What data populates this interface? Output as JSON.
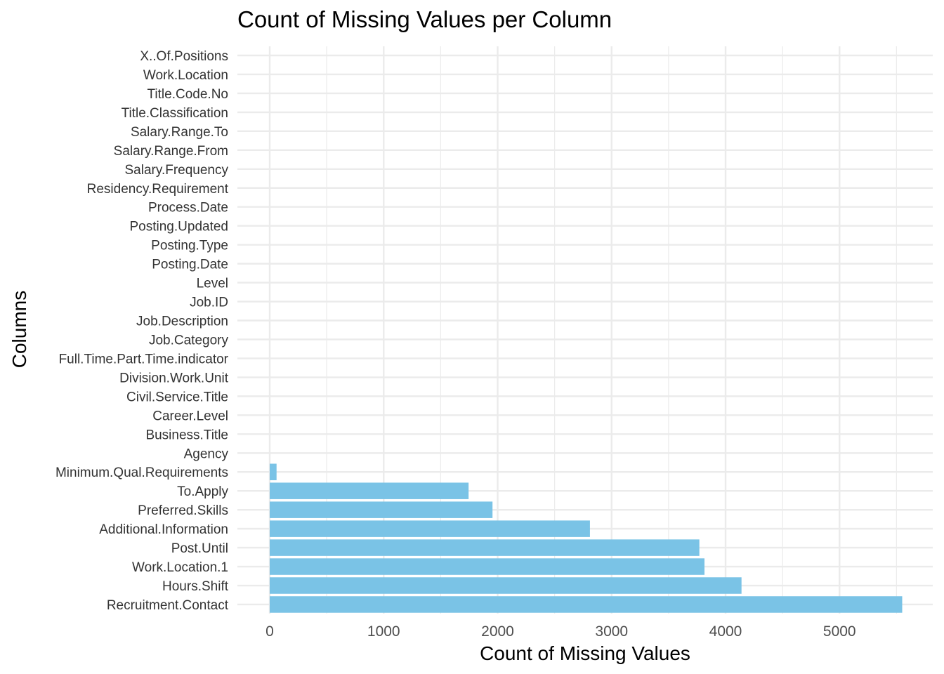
{
  "chart_data": {
    "type": "bar",
    "orientation": "horizontal",
    "title": "Count of Missing Values per Column",
    "xlabel": "Count of Missing Values",
    "ylabel": "Columns",
    "xlim": [
      0,
      5550
    ],
    "x_ticks": [
      0,
      1000,
      2000,
      3000,
      4000,
      5000
    ],
    "x_tick_labels": [
      "0",
      "1000",
      "2000",
      "3000",
      "4000",
      "5000"
    ],
    "grid": true,
    "bar_color": "#7AC3E6",
    "grid_color": "#EBEBEB",
    "categories": [
      "X..Of.Positions",
      "Work.Location",
      "Title.Code.No",
      "Title.Classification",
      "Salary.Range.To",
      "Salary.Range.From",
      "Salary.Frequency",
      "Residency.Requirement",
      "Process.Date",
      "Posting.Updated",
      "Posting.Type",
      "Posting.Date",
      "Level",
      "Job.ID",
      "Job.Description",
      "Job.Category",
      "Full.Time.Part.Time.indicator",
      "Division.Work.Unit",
      "Civil.Service.Title",
      "Career.Level",
      "Business.Title",
      "Agency",
      "Minimum.Qual.Requirements",
      "To.Apply",
      "Preferred.Skills",
      "Additional.Information",
      "Post.Until",
      "Work.Location.1",
      "Hours.Shift",
      "Recruitment.Contact"
    ],
    "values": [
      0,
      0,
      0,
      0,
      0,
      0,
      0,
      0,
      0,
      0,
      0,
      0,
      0,
      0,
      0,
      0,
      0,
      0,
      0,
      0,
      0,
      0,
      60,
      1745,
      1955,
      2810,
      3770,
      3815,
      4140,
      5550
    ]
  }
}
